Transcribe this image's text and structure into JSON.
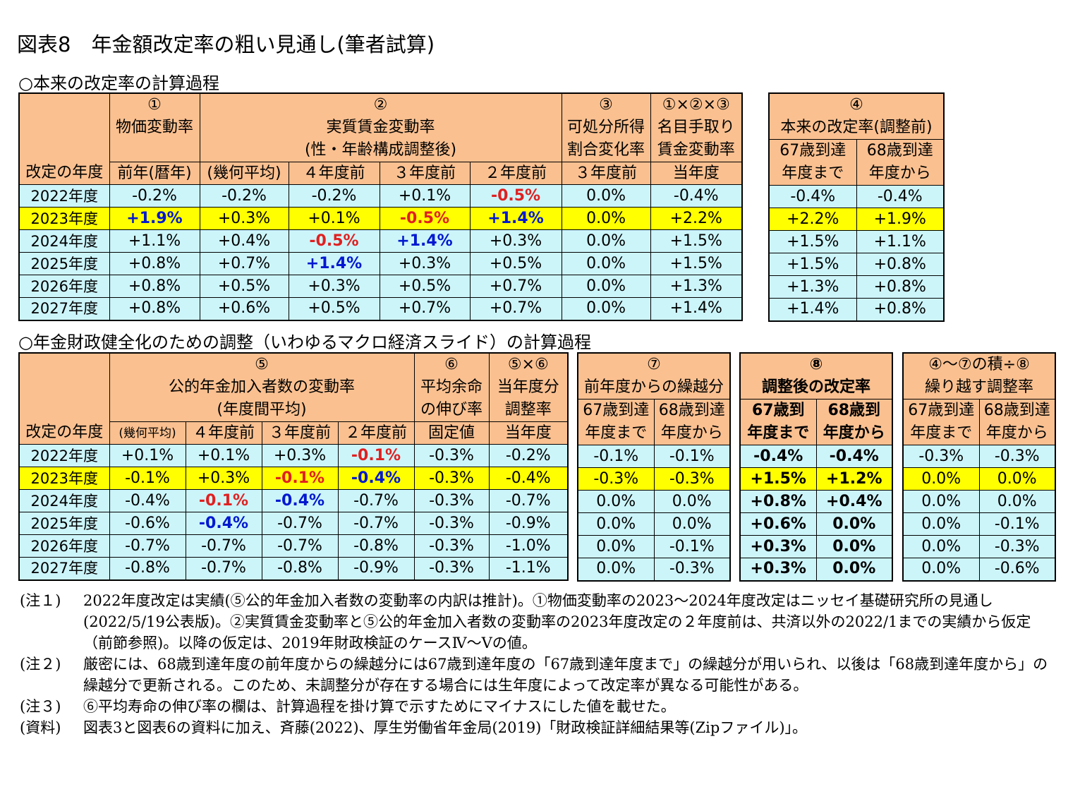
{
  "title": "図表8　年金額改定率の粗い見通し(筆者試算)",
  "section1": {
    "title": "○本来の改定率の計算過程",
    "table1": {
      "year_col_label": "改定の年度",
      "h1_num": "①",
      "h1_title": "物価変動率",
      "h1_sub": "前年(暦年)",
      "h2_num": "②",
      "h2_title": "実質賃金変動率",
      "h2_title2": "(性・年齢構成調整後)",
      "h2_subs": [
        "(幾何平均)",
        "４年度前",
        "３年度前",
        "２年度前"
      ],
      "h3_num": "③",
      "h3_title": "可処分所得",
      "h3_title2": "割合変化率",
      "h3_sub": "３年度前",
      "h4_num": "①×②×③",
      "h4_title": "名目手取り",
      "h4_title2": "賃金変動率",
      "h4_sub": "当年度",
      "rows": [
        {
          "year": "2022年度",
          "c": [
            "-0.2%",
            "-0.2%",
            "-0.2%",
            "+0.1%",
            "-0.5%",
            "0.0%",
            "-0.4%"
          ]
        },
        {
          "year": "2023年度",
          "c": [
            "+1.9%",
            "+0.3%",
            "+0.1%",
            "-0.5%",
            "+1.4%",
            "0.0%",
            "+2.2%"
          ]
        },
        {
          "year": "2024年度",
          "c": [
            "+1.1%",
            "+0.4%",
            "-0.5%",
            "+1.4%",
            "+0.3%",
            "0.0%",
            "+1.5%"
          ]
        },
        {
          "year": "2025年度",
          "c": [
            "+0.8%",
            "+0.7%",
            "+1.4%",
            "+0.3%",
            "+0.5%",
            "0.0%",
            "+1.5%"
          ]
        },
        {
          "year": "2026年度",
          "c": [
            "+0.8%",
            "+0.5%",
            "+0.3%",
            "+0.5%",
            "+0.7%",
            "0.0%",
            "+1.3%"
          ]
        },
        {
          "year": "2027年度",
          "c": [
            "+0.8%",
            "+0.6%",
            "+0.5%",
            "+0.7%",
            "+0.7%",
            "0.0%",
            "+1.4%"
          ]
        }
      ]
    },
    "table2": {
      "num": "④",
      "title": "本来の改定率(調整前)",
      "sub1a": "67歳到達",
      "sub1b": "年度まで",
      "sub2a": "68歳到達",
      "sub2b": "年度から",
      "rows": [
        [
          "-0.4%",
          "-0.4%"
        ],
        [
          "+2.2%",
          "+1.9%"
        ],
        [
          "+1.5%",
          "+1.1%"
        ],
        [
          "+1.5%",
          "+0.8%"
        ],
        [
          "+1.3%",
          "+0.8%"
        ],
        [
          "+1.4%",
          "+0.8%"
        ]
      ]
    }
  },
  "section2": {
    "title": "○年金財政健全化のための調整（いわゆるマクロ経済スライド）の計算過程",
    "table3": {
      "year_col_label": "改定の年度",
      "h5_num": "⑤",
      "h5_title": "公的年金加入者数の変動率",
      "h5_title2": "(年度間平均)",
      "h5_subs": [
        "(幾何平均)",
        "４年度前",
        "３年度前",
        "２年度前"
      ],
      "h6_num": "⑥",
      "h6_title": "平均余命",
      "h6_title2": "の伸び率",
      "h6_sub": "固定値",
      "h56_num": "⑤×⑥",
      "h56_title": "当年度分",
      "h56_title2": "調整率",
      "h56_sub": "当年度",
      "rows": [
        {
          "year": "2022年度",
          "c": [
            "+0.1%",
            "+0.1%",
            "+0.3%",
            "-0.1%",
            "-0.3%",
            "-0.2%"
          ]
        },
        {
          "year": "2023年度",
          "c": [
            "-0.1%",
            "+0.3%",
            "-0.1%",
            "-0.4%",
            "-0.3%",
            "-0.4%"
          ]
        },
        {
          "year": "2024年度",
          "c": [
            "-0.4%",
            "-0.1%",
            "-0.4%",
            "-0.7%",
            "-0.3%",
            "-0.7%"
          ]
        },
        {
          "year": "2025年度",
          "c": [
            "-0.6%",
            "-0.4%",
            "-0.7%",
            "-0.7%",
            "-0.3%",
            "-0.9%"
          ]
        },
        {
          "year": "2026年度",
          "c": [
            "-0.7%",
            "-0.7%",
            "-0.7%",
            "-0.8%",
            "-0.3%",
            "-1.0%"
          ]
        },
        {
          "year": "2027年度",
          "c": [
            "-0.8%",
            "-0.7%",
            "-0.8%",
            "-0.9%",
            "-0.3%",
            "-1.1%"
          ]
        }
      ]
    },
    "table4": {
      "num": "⑦",
      "title": "前年度からの繰越分",
      "sub1a": "67歳到達",
      "sub1b": "年度まで",
      "sub2a": "68歳到達",
      "sub2b": "年度から",
      "rows": [
        [
          "-0.1%",
          "-0.1%"
        ],
        [
          "-0.3%",
          "-0.3%"
        ],
        [
          "0.0%",
          "0.0%"
        ],
        [
          "0.0%",
          "0.0%"
        ],
        [
          "0.0%",
          "-0.1%"
        ],
        [
          "0.0%",
          "-0.3%"
        ]
      ]
    },
    "table5": {
      "num": "⑧",
      "title": "調整後の改定率",
      "sub1a": "67歳到",
      "sub1b": "年度まで",
      "sub2a": "68歳到",
      "sub2b": "年度から",
      "rows": [
        [
          "-0.4%",
          "-0.4%"
        ],
        [
          "+1.5%",
          "+1.2%"
        ],
        [
          "+0.8%",
          "+0.4%"
        ],
        [
          "+0.6%",
          "0.0%"
        ],
        [
          "+0.3%",
          "0.0%"
        ],
        [
          "+0.3%",
          "0.0%"
        ]
      ]
    },
    "table6": {
      "num": "④～⑦の積÷⑧",
      "title": "繰り越す調整率",
      "sub1a": "67歳到達",
      "sub1b": "年度まで",
      "sub2a": "68歳到達",
      "sub2b": "年度から",
      "rows": [
        [
          "-0.3%",
          "-0.3%"
        ],
        [
          "0.0%",
          "0.0%"
        ],
        [
          "0.0%",
          "0.0%"
        ],
        [
          "0.0%",
          "-0.1%"
        ],
        [
          "0.0%",
          "-0.3%"
        ],
        [
          "0.0%",
          "-0.6%"
        ]
      ]
    }
  },
  "notes": [
    {
      "label": "(注１)",
      "text": "2022年度改定は実績(⑤公的年金加入者数の変動率の内訳は推計)。①物価変動率の2023～2024年度改定はニッセイ基礎研究所の見通し(2022/5/19公表版)。②実質賃金変動率と⑤公的年金加入者数の変動率の2023年度改定の２年度前は、共済以外の2022/1までの実績から仮定（前節参照)。以降の仮定は、2019年財政検証のケースⅣ～Ⅴの値。"
    },
    {
      "label": "(注２)",
      "text": "厳密には、68歳到達年度の前年度からの繰越分には67歳到達年度の「67歳到達年度まで」の繰越分が用いられ、以後は「68歳到達年度から」の繰越分で更新される。このため、未調整分が存在する場合には生年度によって改定率が異なる可能性がある。"
    },
    {
      "label": "(注３)",
      "text": "⑥平均寿命の伸び率の欄は、計算過程を掛け算で示すためにマイナスにした値を載せた。"
    },
    {
      "label": "(資料)",
      "text": "図表3と図表6の資料に加え、斉藤(2022)、厚生労働省年金局(2019)「財政検証詳細結果等(Zipファイル)」。"
    }
  ]
}
